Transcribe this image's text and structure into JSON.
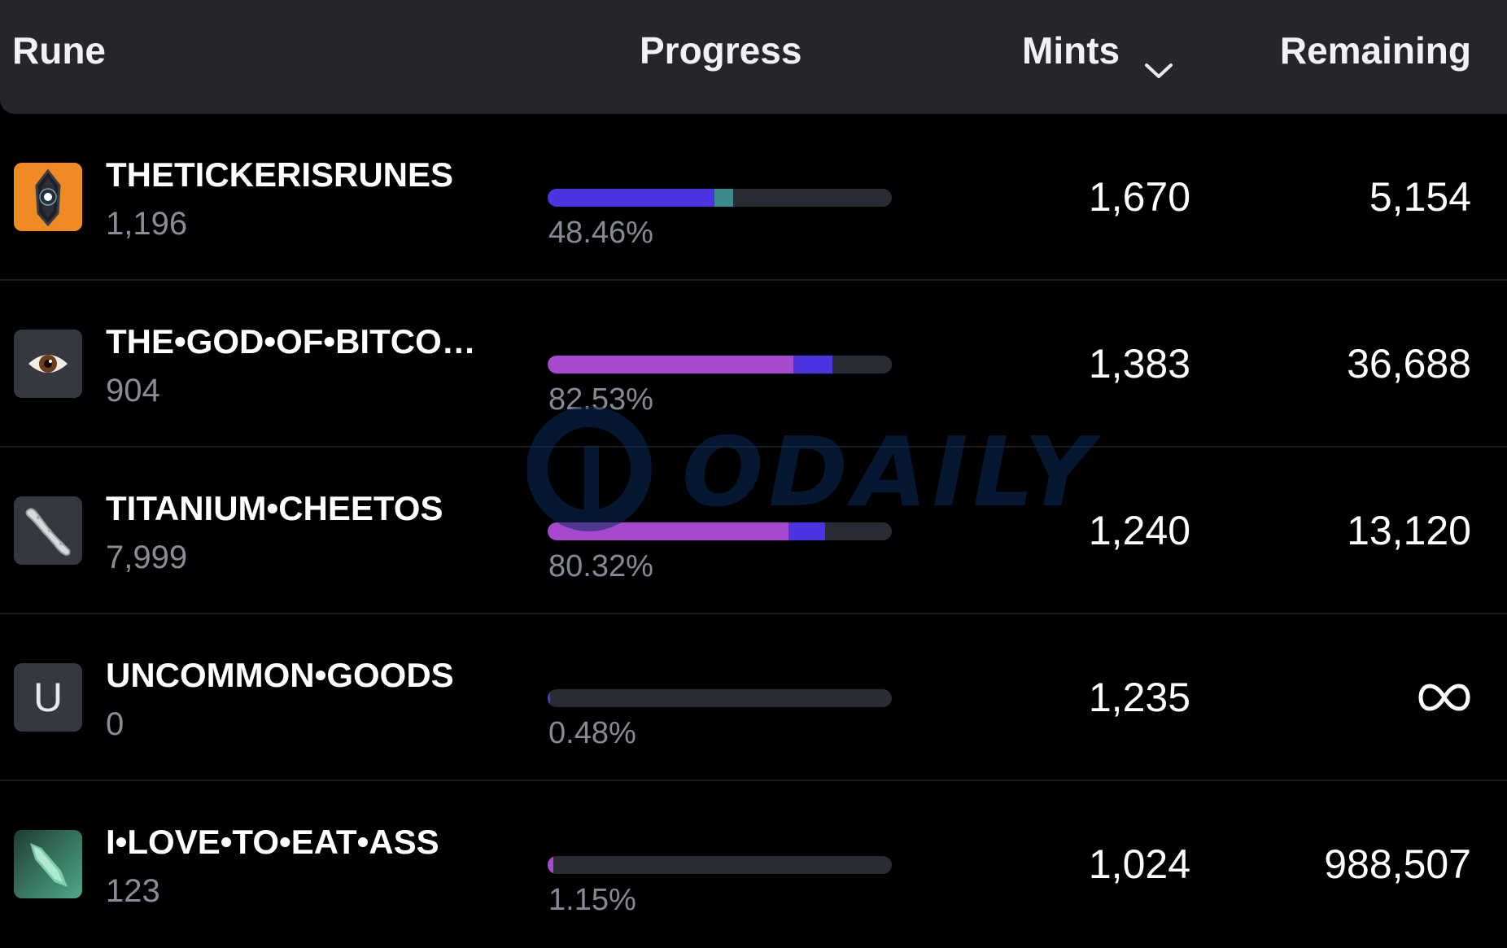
{
  "header": {
    "rune_label": "Rune",
    "progress_label": "Progress",
    "mints_label": "Mints",
    "remaining_label": "Remaining"
  },
  "rows": [
    {
      "name": "THETICKERISRUNES",
      "sub": "1,196",
      "percent": "48.46%",
      "progress": 0.4846,
      "segments": [
        {
          "fraction": 0.485,
          "color": "#4c35e0"
        },
        {
          "fraction": 0.055,
          "color": "#3c8a8e"
        }
      ],
      "mints": "1,670",
      "remaining": "5,154",
      "icon": "dark-crystal-icon",
      "icon_bg": "#f08a24"
    },
    {
      "name": "THE•GOD•OF•BITCO…",
      "sub": "904",
      "percent": "82.53%",
      "progress": 0.8253,
      "segments": [
        {
          "fraction": 0.715,
          "color": "#a648d0"
        },
        {
          "fraction": 0.113,
          "color": "#4c35e0"
        }
      ],
      "mints": "1,383",
      "remaining": "36,688",
      "icon": "eye-icon",
      "icon_bg": "#353840"
    },
    {
      "name": "TITANIUM•CHEETOS",
      "sub": "7,999",
      "percent": "80.32%",
      "progress": 0.8032,
      "segments": [
        {
          "fraction": 0.7,
          "color": "#a648d0"
        },
        {
          "fraction": 0.105,
          "color": "#4c35e0"
        }
      ],
      "mints": "1,240",
      "remaining": "13,120",
      "icon": "cheeto-icon",
      "icon_bg": "#353840"
    },
    {
      "name": "UNCOMMON•GOODS",
      "sub": "0",
      "percent": "0.48%",
      "progress": 0.0048,
      "segments": [
        {
          "fraction": 0.006,
          "color": "#4c35e0"
        }
      ],
      "mints": "1,235",
      "remaining": "",
      "remaining_icon": "infinity-icon",
      "icon": "letter-u-icon",
      "icon_letter": "U",
      "icon_bg": "#353840"
    },
    {
      "name": "I•LOVE•TO•EAT•ASS",
      "sub": "123",
      "percent": "1.15%",
      "progress": 0.0115,
      "segments": [
        {
          "fraction": 0.016,
          "color": "#a648d0"
        }
      ],
      "mints": "1,024",
      "remaining": "988,507",
      "icon": "green-crystal-icon",
      "icon_bg": "#2c5a4a"
    }
  ],
  "watermark": {
    "text": "ODAILY",
    "icon": "odaily-logo-icon",
    "color": "#0c2a5a"
  }
}
